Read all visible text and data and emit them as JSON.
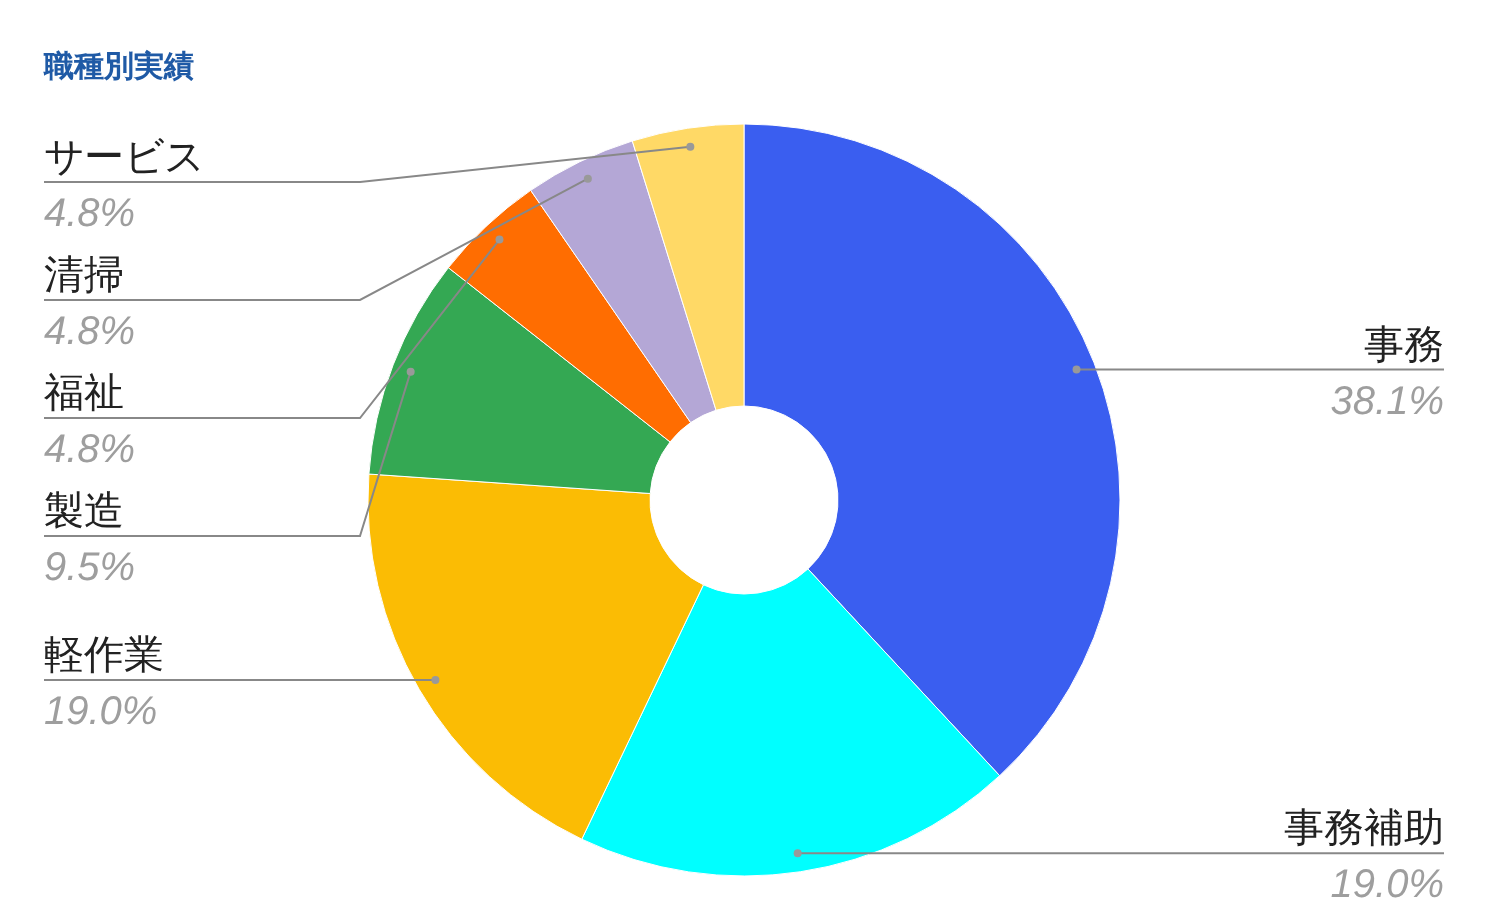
{
  "chart_data": {
    "type": "donut",
    "title": "職種別実績",
    "categories": [
      "事務",
      "事務補助",
      "軽作業",
      "製造",
      "福祉",
      "清掃",
      "サービス"
    ],
    "values": [
      38.1,
      19.0,
      19.0,
      9.5,
      4.8,
      4.8,
      4.8
    ],
    "value_labels": [
      "38.1%",
      "19.0%",
      "19.0%",
      "9.5%",
      "4.8%",
      "4.8%",
      "4.8%"
    ],
    "colors": [
      "#3a5ef0",
      "#00ffff",
      "#fbbc04",
      "#34a853",
      "#ff6d01",
      "#b4a7d6",
      "#ffd966"
    ],
    "legend": false
  }
}
